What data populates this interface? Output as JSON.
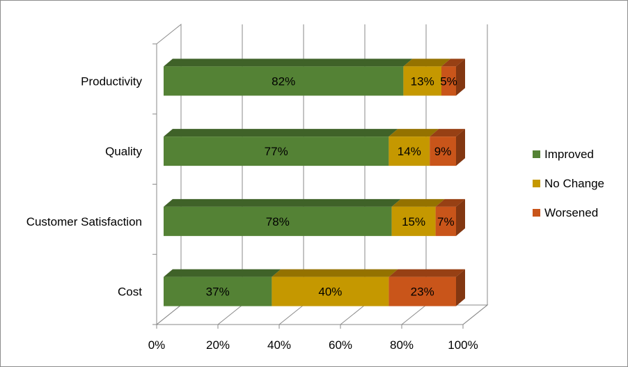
{
  "chart_data": {
    "type": "bar",
    "orientation": "horizontal",
    "stacked": true,
    "percent_stacked": true,
    "three_d": true,
    "categories": [
      "Productivity",
      "Quality",
      "Customer Satisfaction",
      "Cost"
    ],
    "series": [
      {
        "name": "Improved",
        "color": "#548235",
        "values": [
          82,
          77,
          78,
          37
        ]
      },
      {
        "name": "No Change",
        "color": "#c59800",
        "values": [
          13,
          14,
          15,
          40
        ]
      },
      {
        "name": "Worsened",
        "color": "#c9551a",
        "values": [
          5,
          9,
          7,
          23
        ]
      }
    ],
    "data_labels": [
      [
        "82%",
        "13%",
        "5%"
      ],
      [
        "77%",
        "14%",
        "9%"
      ],
      [
        "78%",
        "15%",
        "7%"
      ],
      [
        "37%",
        "40%",
        "23%"
      ]
    ],
    "x_ticks": [
      "0%",
      "20%",
      "40%",
      "60%",
      "80%",
      "100%"
    ],
    "xlim": [
      0,
      100
    ],
    "grid": true,
    "legend_position": "right"
  }
}
